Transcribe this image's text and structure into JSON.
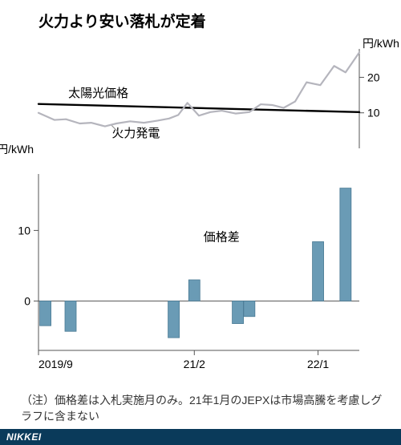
{
  "title": "火力より安い落札が定着",
  "unit_label": "円/kWh",
  "top_chart": {
    "type": "line",
    "ylim": [
      0,
      28
    ],
    "yticks": [
      10,
      20
    ],
    "series": [
      {
        "name": "太陽光価格",
        "label": "太陽光価格",
        "color": "#000000",
        "width": 2.4,
        "points": [
          [
            0,
            12.5
          ],
          [
            14,
            10.2
          ]
        ]
      },
      {
        "name": "火力発電",
        "label": "火力発電",
        "color": "#b5b5bd",
        "width": 2.2,
        "points": [
          [
            0,
            10
          ],
          [
            0.7,
            8
          ],
          [
            1.2,
            8.2
          ],
          [
            1.8,
            7
          ],
          [
            2.3,
            7.2
          ],
          [
            2.9,
            6.2
          ],
          [
            3.4,
            7
          ],
          [
            4,
            7.6
          ],
          [
            4.6,
            7.2
          ],
          [
            5.2,
            7.8
          ],
          [
            5.7,
            8.4
          ],
          [
            6.1,
            9.4
          ],
          [
            6.5,
            12.8
          ],
          [
            7,
            9.2
          ],
          [
            7.5,
            10.2
          ],
          [
            8,
            10.6
          ],
          [
            8.6,
            9.8
          ],
          [
            9.2,
            10.2
          ],
          [
            9.7,
            12.4
          ],
          [
            10.2,
            12.2
          ],
          [
            10.7,
            11.4
          ],
          [
            11.2,
            13.2
          ],
          [
            11.7,
            18.6
          ],
          [
            12.3,
            17.8
          ],
          [
            12.9,
            23.2
          ],
          [
            13.4,
            21.4
          ],
          [
            14,
            27
          ]
        ]
      }
    ]
  },
  "bottom_chart": {
    "type": "bar",
    "label": "価格差",
    "ylim": [
      -7,
      18
    ],
    "yticks": [
      0,
      10
    ],
    "bar_color": "#6a9bb5",
    "bar_stroke": "#4a7a94",
    "bars": [
      {
        "x": 0.3,
        "v": -3.5
      },
      {
        "x": 1.4,
        "v": -4.3
      },
      {
        "x": 5.9,
        "v": -5.2
      },
      {
        "x": 6.8,
        "v": 3.0
      },
      {
        "x": 8.7,
        "v": -3.2
      },
      {
        "x": 9.2,
        "v": -2.2
      },
      {
        "x": 12.2,
        "v": 8.4
      },
      {
        "x": 13.4,
        "v": 16.0
      }
    ]
  },
  "x_axis": {
    "ticks": [
      {
        "x": 0,
        "label": "2019/9"
      },
      {
        "x": 6.8,
        "label": "21/2"
      },
      {
        "x": 12.2,
        "label": "22/1"
      }
    ]
  },
  "footnote": "（注）価格差は入札実施月のみ。21年1月のJEPXは市場高騰を考慮しグラフに含まない",
  "footer": "NIKKEI",
  "colors": {
    "bg": "#ffffff",
    "axis": "#555555",
    "footer_bg": "#0a3a5a"
  }
}
